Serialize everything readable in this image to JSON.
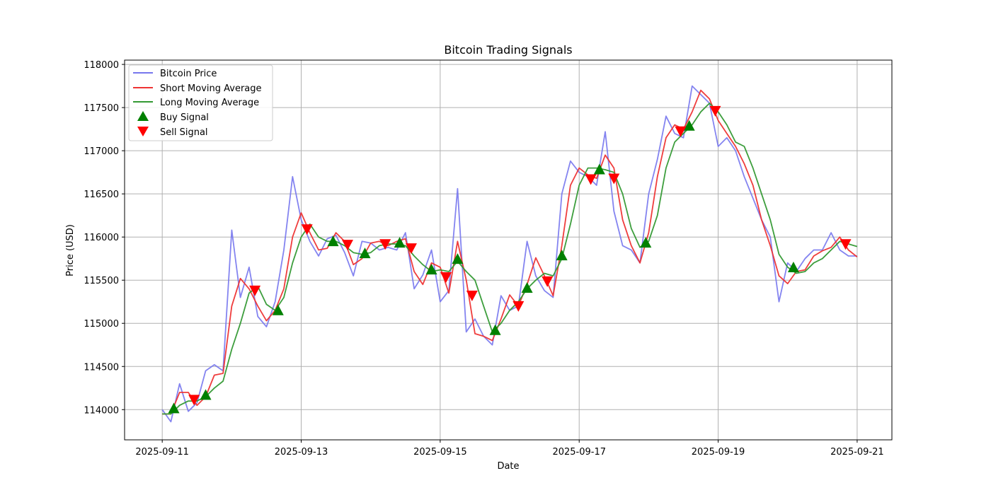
{
  "chart_data": {
    "type": "line",
    "title": "Bitcoin Trading Signals",
    "xlabel": "Date",
    "ylabel": "Price (USD)",
    "xlim": [
      "2025-09-10T11:00",
      "2025-09-21T12:00"
    ],
    "ylim": [
      113650,
      118050
    ],
    "grid": true,
    "legend_position": "top-left",
    "x_ticks": [
      "2025-09-11",
      "2025-09-13",
      "2025-09-15",
      "2025-09-17",
      "2025-09-19",
      "2025-09-21"
    ],
    "y_ticks": [
      114000,
      114500,
      115000,
      115500,
      116000,
      116500,
      117000,
      117500,
      118000
    ],
    "x": [
      "2025-09-11T00:00",
      "2025-09-11T03:00",
      "2025-09-11T06:00",
      "2025-09-11T09:00",
      "2025-09-11T12:00",
      "2025-09-11T15:00",
      "2025-09-11T18:00",
      "2025-09-11T21:00",
      "2025-09-12T00:00",
      "2025-09-12T03:00",
      "2025-09-12T06:00",
      "2025-09-12T09:00",
      "2025-09-12T12:00",
      "2025-09-12T15:00",
      "2025-09-12T18:00",
      "2025-09-12T21:00",
      "2025-09-13T00:00",
      "2025-09-13T03:00",
      "2025-09-13T06:00",
      "2025-09-13T09:00",
      "2025-09-13T12:00",
      "2025-09-13T15:00",
      "2025-09-13T18:00",
      "2025-09-13T21:00",
      "2025-09-14T00:00",
      "2025-09-14T03:00",
      "2025-09-14T06:00",
      "2025-09-14T09:00",
      "2025-09-14T12:00",
      "2025-09-14T15:00",
      "2025-09-14T18:00",
      "2025-09-14T21:00",
      "2025-09-15T00:00",
      "2025-09-15T03:00",
      "2025-09-15T06:00",
      "2025-09-15T09:00",
      "2025-09-15T12:00",
      "2025-09-15T15:00",
      "2025-09-15T18:00",
      "2025-09-15T21:00",
      "2025-09-16T00:00",
      "2025-09-16T03:00",
      "2025-09-16T06:00",
      "2025-09-16T09:00",
      "2025-09-16T12:00",
      "2025-09-16T15:00",
      "2025-09-16T18:00",
      "2025-09-16T21:00",
      "2025-09-17T00:00",
      "2025-09-17T03:00",
      "2025-09-17T06:00",
      "2025-09-17T09:00",
      "2025-09-17T12:00",
      "2025-09-17T15:00",
      "2025-09-17T18:00",
      "2025-09-17T21:00",
      "2025-09-18T00:00",
      "2025-09-18T03:00",
      "2025-09-18T06:00",
      "2025-09-18T09:00",
      "2025-09-18T12:00",
      "2025-09-18T15:00",
      "2025-09-18T18:00",
      "2025-09-18T21:00",
      "2025-09-19T00:00",
      "2025-09-19T03:00",
      "2025-09-19T06:00",
      "2025-09-19T09:00",
      "2025-09-19T12:00",
      "2025-09-19T15:00",
      "2025-09-19T18:00",
      "2025-09-19T21:00",
      "2025-09-20T00:00",
      "2025-09-20T03:00",
      "2025-09-20T06:00",
      "2025-09-20T09:00",
      "2025-09-20T12:00",
      "2025-09-20T15:00",
      "2025-09-20T18:00",
      "2025-09-20T21:00",
      "2025-09-21T00:00"
    ],
    "series": [
      {
        "name": "Bitcoin Price",
        "color": "#7777ee",
        "values": [
          114000,
          113860,
          114300,
          113980,
          114080,
          114450,
          114520,
          114450,
          116080,
          115300,
          115650,
          115080,
          114960,
          115250,
          115850,
          116700,
          116200,
          115950,
          115780,
          115980,
          116020,
          115820,
          115550,
          115950,
          115930,
          115850,
          115880,
          115850,
          116050,
          115400,
          115560,
          115850,
          115250,
          115380,
          116560,
          114900,
          115050,
          114850,
          114750,
          115320,
          115150,
          115200,
          115950,
          115550,
          115380,
          115300,
          116500,
          116880,
          116750,
          116700,
          116600,
          117220,
          116300,
          115900,
          115850,
          115700,
          116500,
          116900,
          117400,
          117200,
          117150,
          117750,
          117650,
          117550,
          117050,
          117150,
          117000,
          116700,
          116450,
          116200,
          116000,
          115250,
          115700,
          115600,
          115750,
          115850,
          115850,
          116050,
          115850,
          115780,
          115780
        ]
      },
      {
        "name": "Short Moving Average",
        "color": "#ee3333",
        "values": [
          113950,
          113950,
          114200,
          114200,
          114050,
          114150,
          114400,
          114420,
          115200,
          115520,
          115400,
          115200,
          115030,
          115150,
          115400,
          116000,
          116280,
          116050,
          115850,
          115870,
          116050,
          115950,
          115680,
          115750,
          115930,
          115950,
          115900,
          115950,
          115980,
          115600,
          115450,
          115700,
          115650,
          115350,
          115950,
          115500,
          114880,
          114850,
          114800,
          115050,
          115330,
          115200,
          115450,
          115760,
          115550,
          115320,
          115900,
          116600,
          116800,
          116720,
          116680,
          116950,
          116800,
          116200,
          115900,
          115700,
          116050,
          116700,
          117150,
          117300,
          117250,
          117450,
          117700,
          117600,
          117350,
          117200,
          117050,
          116850,
          116600,
          116200,
          115900,
          115550,
          115460,
          115600,
          115620,
          115780,
          115840,
          115880,
          116000,
          115850,
          115770
        ]
      },
      {
        "name": "Long Moving Average",
        "color": "#339933",
        "values": [
          113950,
          113950,
          114050,
          114100,
          114100,
          114150,
          114250,
          114330,
          114700,
          115000,
          115350,
          115430,
          115220,
          115150,
          115300,
          115700,
          116000,
          116150,
          116000,
          115950,
          115950,
          115900,
          115820,
          115800,
          115820,
          115900,
          115920,
          115920,
          115900,
          115780,
          115680,
          115600,
          115620,
          115600,
          115720,
          115600,
          115500,
          115200,
          114900,
          115000,
          115150,
          115250,
          115400,
          115500,
          115580,
          115550,
          115750,
          116150,
          116600,
          116800,
          116800,
          116780,
          116750,
          116500,
          116100,
          115880,
          115950,
          116250,
          116800,
          117100,
          117200,
          117300,
          117450,
          117550,
          117450,
          117300,
          117100,
          117050,
          116800,
          116500,
          116200,
          115800,
          115650,
          115580,
          115600,
          115700,
          115750,
          115850,
          115950,
          115920,
          115890
        ]
      }
    ],
    "signals": [
      {
        "name": "Buy Signal",
        "color": "#008000",
        "marker": "triangle-up",
        "points": [
          [
            "2025-09-11T04:00",
            114016
          ],
          [
            "2025-09-11T15:00",
            114171
          ],
          [
            "2025-09-12T16:00",
            115151
          ],
          [
            "2025-09-13T11:00",
            115951
          ],
          [
            "2025-09-13T22:00",
            115812
          ],
          [
            "2025-09-14T10:00",
            115935
          ],
          [
            "2025-09-14T21:00",
            115624
          ],
          [
            "2025-09-15T06:00",
            115747
          ],
          [
            "2025-09-15T19:00",
            114922
          ],
          [
            "2025-09-16T06:00",
            115412
          ],
          [
            "2025-09-16T18:00",
            115788
          ],
          [
            "2025-09-17T07:00",
            116784
          ],
          [
            "2025-09-17T23:00",
            115935
          ],
          [
            "2025-09-18T14:00",
            117290
          ],
          [
            "2025-09-20T02:00",
            115649
          ]
        ]
      },
      {
        "name": "Sell Signal",
        "color": "#ff0000",
        "marker": "triangle-down",
        "points": [
          [
            "2025-09-11T11:00",
            114114
          ],
          [
            "2025-09-12T08:00",
            115380
          ],
          [
            "2025-09-13T02:00",
            116090
          ],
          [
            "2025-09-13T16:00",
            115910
          ],
          [
            "2025-09-14T05:00",
            115918
          ],
          [
            "2025-09-14T14:00",
            115869
          ],
          [
            "2025-09-15T02:00",
            115535
          ],
          [
            "2025-09-15T11:00",
            115322
          ],
          [
            "2025-09-16T03:00",
            115200
          ],
          [
            "2025-09-16T13:00",
            115486
          ],
          [
            "2025-09-17T04:00",
            116669
          ],
          [
            "2025-09-17T12:00",
            116678
          ],
          [
            "2025-09-18T11:00",
            117224
          ],
          [
            "2025-09-18T23:00",
            117461
          ],
          [
            "2025-09-20T20:00",
            115918
          ]
        ]
      }
    ]
  }
}
